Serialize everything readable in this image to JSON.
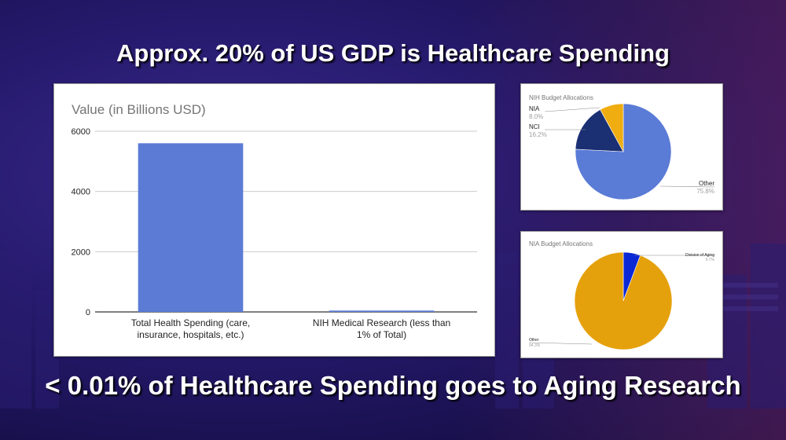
{
  "slide": {
    "title": "Approx. 20% of US GDP is Healthcare Spending",
    "subtitle": "< 0.01% of Healthcare Spending goes to Aging Research"
  },
  "colors": {
    "bar": "#5b7bd5",
    "pie_other_nih": "#5a7bd6",
    "pie_nci": "#1b2f73",
    "pie_nia": "#f0ad12",
    "pie_other_nia": "#e5a10c",
    "pie_aging": "#0b28d6"
  },
  "chart_data": [
    {
      "type": "bar",
      "title": "Value (in Billions USD)",
      "categories": [
        "Total Health Spending (care, insurance, hospitals, etc.)",
        "NIH Medical Research (less than 1% of Total)"
      ],
      "category_lines": [
        [
          "Total Health Spending (care,",
          "insurance, hospitals, etc.)"
        ],
        [
          "NIH Medical Research (less than",
          "1% of Total)"
        ]
      ],
      "values": [
        5600,
        45
      ],
      "ylim": [
        0,
        6000
      ],
      "yticks": [
        "0",
        "2000",
        "4000",
        "6000"
      ],
      "grid": true
    },
    {
      "type": "pie",
      "title": "NIH Budget Allocations",
      "slices": [
        {
          "label": "Other",
          "value": 75.8,
          "pct": "75.8%"
        },
        {
          "label": "NCI",
          "value": 16.2,
          "pct": "16.2%"
        },
        {
          "label": "NIA",
          "value": 8.0,
          "pct": "8.0%"
        }
      ]
    },
    {
      "type": "pie",
      "title": "NIA Budget Allocations",
      "slices": [
        {
          "label": "Division of Aging",
          "value": 5.7,
          "pct": "5.7%"
        },
        {
          "label": "Other",
          "value": 94.3,
          "pct": "94.3%"
        }
      ]
    }
  ]
}
